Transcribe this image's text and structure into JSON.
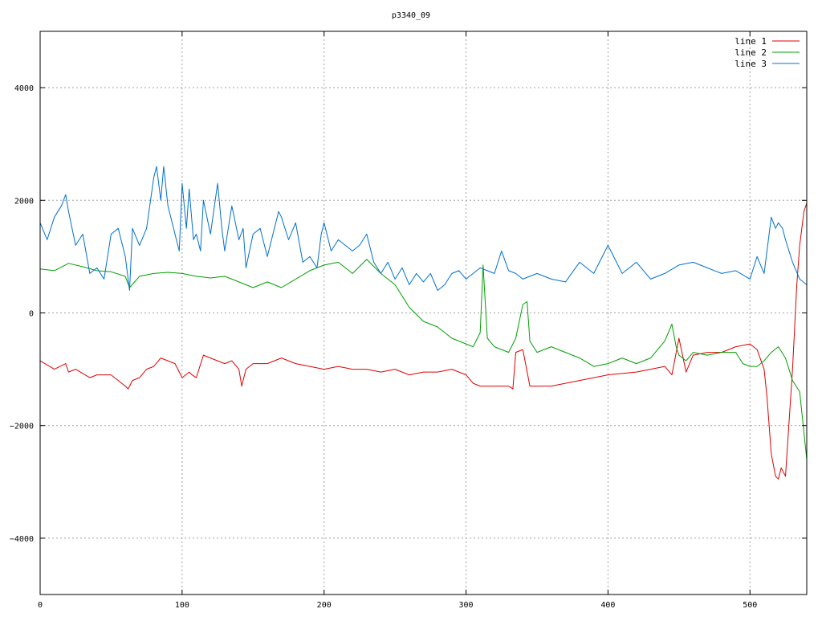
{
  "chart_data": {
    "type": "line",
    "title": "p3340_09",
    "xlabel": "",
    "ylabel": "",
    "xlim": [
      0,
      540
    ],
    "ylim": [
      -5000,
      5000
    ],
    "xticks": [
      0,
      100,
      200,
      300,
      400,
      500
    ],
    "yticks": [
      -4000,
      -2000,
      0,
      2000,
      4000
    ],
    "ytick_labels": [
      "−4000",
      "−2000",
      "0",
      "2000",
      "4000"
    ],
    "grid": true,
    "legend_position": "top-right",
    "series": [
      {
        "name": "line 1",
        "color": "#e00000",
        "x": [
          0,
          10,
          18,
          20,
          25,
          35,
          40,
          50,
          60,
          62,
          65,
          70,
          75,
          80,
          85,
          90,
          95,
          100,
          105,
          107,
          110,
          115,
          120,
          125,
          130,
          135,
          140,
          142,
          145,
          150,
          160,
          170,
          180,
          190,
          200,
          210,
          220,
          230,
          240,
          250,
          260,
          270,
          280,
          290,
          300,
          305,
          310,
          320,
          330,
          333,
          335,
          340,
          345,
          350,
          360,
          380,
          400,
          420,
          440,
          445,
          450,
          455,
          460,
          470,
          480,
          490,
          500,
          505,
          510,
          512,
          515,
          518,
          520,
          522,
          525,
          530,
          533,
          535,
          538,
          540
        ],
        "y": [
          -850,
          -1000,
          -900,
          -1050,
          -1000,
          -1150,
          -1100,
          -1100,
          -1300,
          -1350,
          -1200,
          -1150,
          -1000,
          -950,
          -800,
          -850,
          -900,
          -1150,
          -1050,
          -1100,
          -1150,
          -750,
          -800,
          -850,
          -900,
          -850,
          -1000,
          -1300,
          -1000,
          -900,
          -900,
          -800,
          -900,
          -950,
          -1000,
          -950,
          -1000,
          -1000,
          -1050,
          -1000,
          -1100,
          -1050,
          -1050,
          -1000,
          -1100,
          -1250,
          -1300,
          -1300,
          -1300,
          -1350,
          -700,
          -650,
          -1300,
          -1300,
          -1300,
          -1200,
          -1100,
          -1050,
          -950,
          -1100,
          -450,
          -1050,
          -750,
          -700,
          -700,
          -600,
          -550,
          -650,
          -1000,
          -1500,
          -2500,
          -2900,
          -2950,
          -2750,
          -2900,
          -1000,
          500,
          1200,
          1800,
          1950
        ]
      },
      {
        "name": "line 2",
        "color": "#00a000",
        "x": [
          0,
          10,
          20,
          30,
          40,
          50,
          60,
          63,
          70,
          80,
          90,
          100,
          110,
          120,
          130,
          140,
          150,
          160,
          170,
          180,
          190,
          200,
          210,
          220,
          230,
          240,
          250,
          260,
          270,
          280,
          290,
          300,
          305,
          310,
          312,
          315,
          320,
          330,
          335,
          340,
          343,
          345,
          350,
          360,
          370,
          380,
          390,
          400,
          410,
          420,
          430,
          440,
          445,
          448,
          450,
          455,
          460,
          470,
          480,
          490,
          495,
          500,
          505,
          510,
          515,
          520,
          525,
          530,
          535,
          540
        ],
        "y": [
          780,
          750,
          880,
          820,
          750,
          730,
          650,
          450,
          650,
          700,
          720,
          700,
          650,
          620,
          650,
          550,
          450,
          550,
          450,
          600,
          750,
          850,
          900,
          700,
          950,
          700,
          500,
          100,
          -150,
          -250,
          -450,
          -550,
          -600,
          -350,
          850,
          -450,
          -600,
          -700,
          -450,
          150,
          200,
          -500,
          -700,
          -600,
          -700,
          -800,
          -950,
          -900,
          -800,
          -900,
          -800,
          -500,
          -200,
          -600,
          -750,
          -850,
          -700,
          -750,
          -700,
          -700,
          -900,
          -950,
          -950,
          -850,
          -700,
          -600,
          -800,
          -1200,
          -1400,
          -2600
        ]
      },
      {
        "name": "line 3",
        "color": "#0070d0",
        "x": [
          0,
          5,
          10,
          15,
          18,
          20,
          25,
          30,
          35,
          40,
          45,
          50,
          55,
          60,
          63,
          65,
          70,
          75,
          80,
          82,
          85,
          87,
          90,
          95,
          98,
          100,
          103,
          105,
          108,
          110,
          113,
          115,
          120,
          125,
          128,
          130,
          135,
          140,
          143,
          145,
          150,
          155,
          160,
          165,
          168,
          170,
          175,
          180,
          185,
          190,
          195,
          198,
          200,
          205,
          210,
          215,
          220,
          225,
          230,
          235,
          240,
          245,
          250,
          255,
          260,
          265,
          270,
          275,
          280,
          285,
          290,
          295,
          300,
          310,
          320,
          325,
          330,
          335,
          340,
          350,
          360,
          370,
          380,
          390,
          400,
          410,
          420,
          430,
          440,
          450,
          460,
          470,
          480,
          490,
          500,
          505,
          510,
          515,
          518,
          520,
          523,
          525,
          530,
          535,
          540
        ],
        "y": [
          1600,
          1300,
          1700,
          1900,
          2100,
          1800,
          1200,
          1400,
          700,
          800,
          600,
          1400,
          1500,
          1000,
          400,
          1500,
          1200,
          1500,
          2400,
          2600,
          2000,
          2600,
          1900,
          1400,
          1100,
          2300,
          1500,
          2200,
          1300,
          1400,
          1100,
          2000,
          1400,
          2300,
          1500,
          1100,
          1900,
          1300,
          1500,
          800,
          1400,
          1500,
          1000,
          1500,
          1800,
          1700,
          1300,
          1600,
          900,
          1000,
          800,
          1400,
          1600,
          1100,
          1300,
          1200,
          1100,
          1200,
          1400,
          900,
          700,
          900,
          600,
          800,
          500,
          700,
          550,
          700,
          400,
          500,
          700,
          750,
          600,
          800,
          700,
          1100,
          750,
          700,
          600,
          700,
          600,
          550,
          900,
          700,
          1200,
          700,
          900,
          600,
          700,
          850,
          900,
          800,
          700,
          750,
          600,
          1000,
          700,
          1700,
          1500,
          1600,
          1500,
          1300,
          900,
          600,
          500
        ]
      }
    ]
  }
}
